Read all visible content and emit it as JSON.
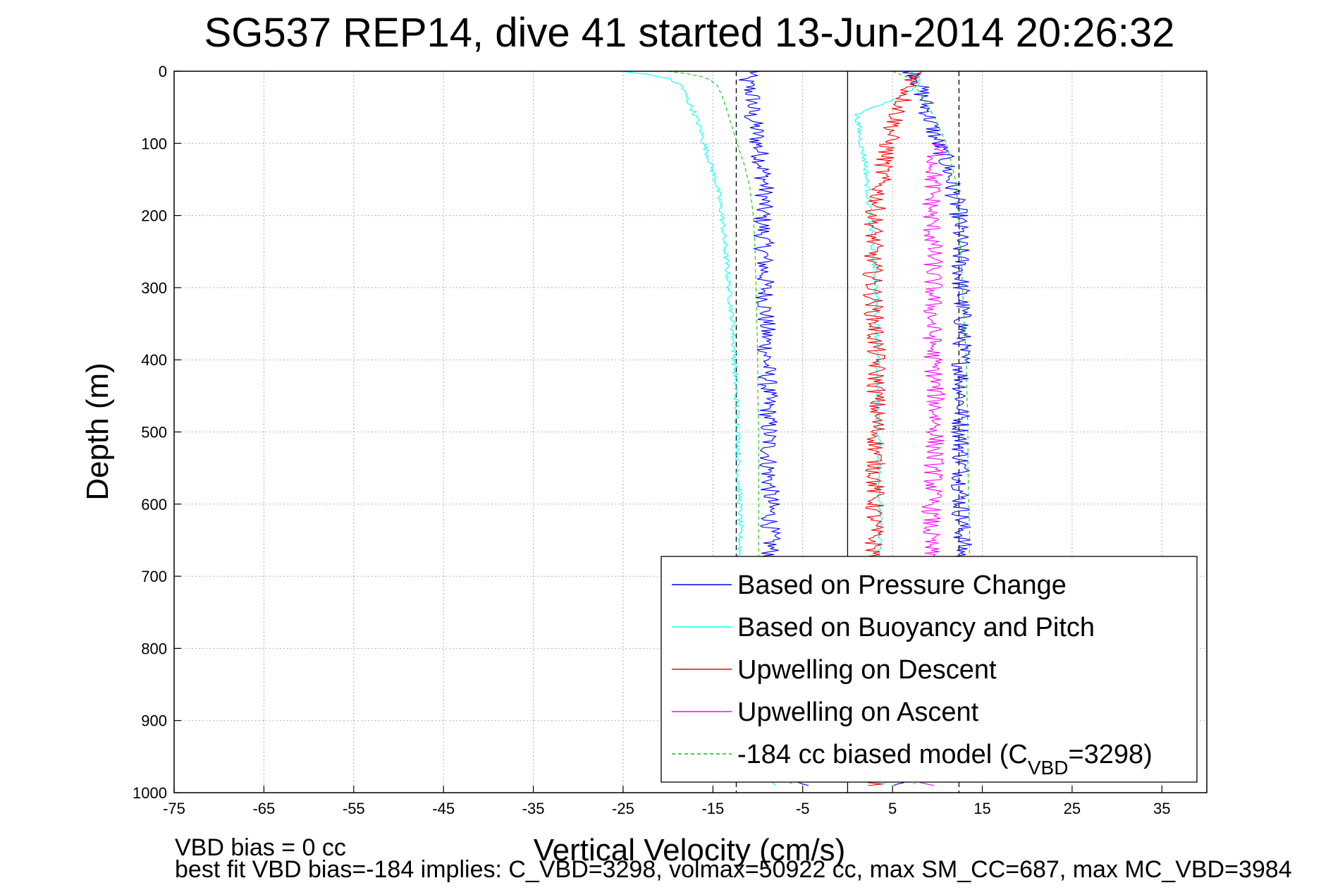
{
  "chart_data": {
    "type": "line",
    "title": "SG537 REP14, dive 41 started 13-Jun-2014 20:26:32",
    "xlabel": "Vertical Velocity (cm/s)",
    "ylabel": "Depth (m)",
    "xlim": [
      -75,
      40
    ],
    "ylim": [
      0,
      1000
    ],
    "y_reversed": true,
    "grid": true,
    "x_ticks": [
      -75,
      -65,
      -55,
      -45,
      -35,
      -25,
      -15,
      -5,
      5,
      15,
      25,
      35
    ],
    "y_ticks": [
      0,
      100,
      200,
      300,
      400,
      500,
      600,
      700,
      800,
      900,
      1000
    ],
    "legend_position": "bottom-right",
    "series": [
      {
        "name": "Based on Pressure Change",
        "color": "#0000ff",
        "depth": [
          0,
          5,
          10,
          20,
          40,
          60,
          80,
          100,
          130,
          160,
          200,
          250,
          300,
          350,
          400,
          450,
          500,
          550,
          600,
          650,
          700,
          750,
          800,
          850,
          900,
          950,
          990
        ],
        "velocity": [
          -10,
          -11,
          -11.5,
          -11,
          -10.5,
          -10.8,
          -10.2,
          -10,
          -9.5,
          -9.2,
          -9.5,
          -9.3,
          -9.2,
          -9.1,
          -9,
          -8.9,
          -8.8,
          -8.8,
          -8.6,
          -8.6,
          -8.5,
          -8.6,
          -8.5,
          -8.6,
          -8.5,
          -8.6,
          -5
        ],
        "ascent_depth": [
          990,
          950,
          900,
          850,
          800,
          750,
          700,
          650,
          600,
          550,
          500,
          450,
          400,
          350,
          300,
          250,
          200,
          150,
          120,
          100,
          80,
          60,
          40,
          20,
          10,
          0
        ],
        "ascent_velocity": [
          5,
          12,
          12.5,
          12.5,
          12.6,
          12.7,
          12.8,
          12.8,
          12.6,
          12.7,
          12.6,
          12.7,
          12.7,
          12.8,
          12.6,
          12.5,
          12.4,
          11.5,
          10.8,
          10,
          9.5,
          9,
          8.5,
          8,
          8,
          7
        ]
      },
      {
        "name": "Based on Buoyancy and Pitch",
        "color": "#00ffff",
        "depth": [
          0,
          5,
          10,
          20,
          40,
          60,
          80,
          100,
          130,
          160,
          200,
          250,
          300,
          350,
          400,
          450,
          500,
          550,
          600,
          650,
          700,
          750,
          800,
          850,
          900,
          950,
          990
        ],
        "velocity": [
          -25,
          -22,
          -20,
          -18.5,
          -17.8,
          -17,
          -16.4,
          -16,
          -15.2,
          -14.5,
          -14,
          -13.6,
          -13.2,
          -12.8,
          -12.6,
          -12.4,
          -12.2,
          -12.2,
          -12,
          -12,
          -12,
          -12,
          -12,
          -12,
          -12,
          -12,
          -8
        ],
        "ascent_depth": [
          990,
          900,
          800,
          700,
          600,
          500,
          400,
          300,
          200,
          130,
          100,
          60,
          40,
          20,
          10,
          0
        ],
        "ascent_velocity": [
          4,
          3.5,
          3.5,
          3.5,
          3.6,
          3.4,
          3.3,
          3.2,
          2.5,
          2,
          1.5,
          1,
          5,
          8,
          8,
          7
        ]
      },
      {
        "name": "Upwelling on Descent",
        "color": "#ff0000",
        "depth": [
          0,
          10,
          20,
          40,
          60,
          80,
          100,
          130,
          160,
          200,
          250,
          300,
          350,
          400,
          450,
          500,
          550,
          600,
          650,
          700,
          750,
          800,
          850,
          900,
          950,
          990
        ],
        "velocity": [
          8,
          7.5,
          7,
          6.2,
          5.5,
          5,
          4.5,
          4,
          3.6,
          3,
          2.8,
          2.8,
          3,
          3.2,
          3.2,
          3.2,
          3.1,
          3,
          2.9,
          3,
          3,
          3,
          3,
          3,
          3,
          3
        ]
      },
      {
        "name": "Upwelling on Ascent",
        "color": "#ff00ff",
        "depth": [
          990,
          950,
          900,
          850,
          800,
          750,
          700,
          650,
          600,
          550,
          500,
          450,
          400,
          350,
          300,
          250,
          200,
          150,
          120,
          100
        ],
        "velocity": [
          9,
          9.2,
          9.3,
          9.2,
          9.3,
          9.2,
          9.3,
          9.1,
          9.4,
          9.6,
          9.8,
          9.8,
          9.5,
          9.4,
          9.5,
          9.5,
          9.3,
          9.5,
          9.8,
          10
        ]
      },
      {
        "name": "-184 cc biased model (C_VBD=3298)",
        "legend_main": "-184 cc biased model (C",
        "legend_sub": "VBD",
        "legend_tail": "=3298)",
        "color": "#00cc00",
        "dashed": true,
        "depth": [
          0,
          5,
          10,
          20,
          40,
          60,
          80,
          100,
          130,
          160,
          200,
          250,
          300,
          350,
          400,
          450,
          500,
          550,
          600,
          650,
          700,
          750,
          800,
          850,
          900,
          950,
          990
        ],
        "velocity": [
          -20,
          -17,
          -15.5,
          -14.5,
          -13.8,
          -13.3,
          -12.8,
          -12.3,
          -11.5,
          -10.9,
          -10.5,
          -10.3,
          -10.2,
          -10.1,
          -10,
          -10,
          -9.9,
          -9.9,
          -9.9,
          -9.9,
          -9.9,
          -9.9,
          -9.9,
          -9.9,
          -9.9,
          -9.9,
          -6
        ],
        "ascent_depth": [
          990,
          950,
          900,
          850,
          800,
          750,
          700,
          650,
          600,
          550,
          500,
          450,
          400,
          350,
          300,
          250,
          200,
          150,
          100,
          60,
          40,
          20,
          10,
          0
        ],
        "ascent_velocity": [
          7,
          13.5,
          13.5,
          13.6,
          13.6,
          13.5,
          13.5,
          13.6,
          13.5,
          13.4,
          13.4,
          13.3,
          13.2,
          13,
          12.8,
          12.6,
          12.4,
          12,
          11,
          9.5,
          8.5,
          7.5,
          7,
          5
        ]
      }
    ],
    "reference_lines": [
      {
        "x": -12.4,
        "style": "dashed",
        "color": "#000000"
      },
      {
        "x": 12.4,
        "style": "dashed",
        "color": "#000000"
      },
      {
        "x": 0,
        "style": "solid",
        "color": "#000000"
      }
    ]
  },
  "footnotes": {
    "line1": "VBD bias = 0 cc",
    "line2": "best fit VBD bias=-184 implies: C_VBD=3298, volmax=50922 cc, max SM_CC=687, max MC_VBD=3984"
  }
}
